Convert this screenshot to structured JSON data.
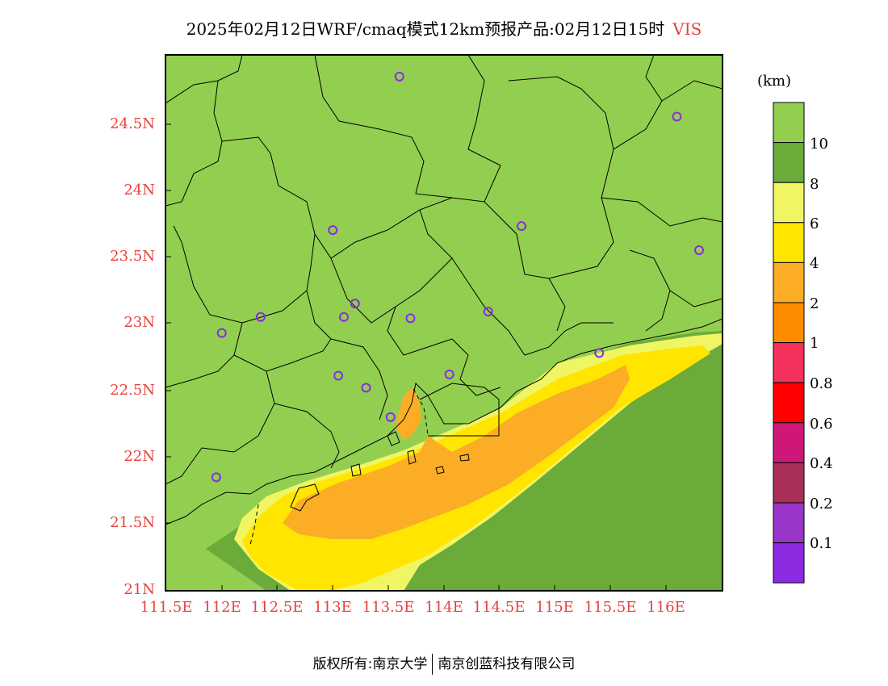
{
  "title": {
    "text": "2025年02月12日WRF/cmaq模式12km预报产品:02月12日15时",
    "variable": "VIS"
  },
  "y_axis_labels": [
    "24.5N",
    "24N",
    "23.5N",
    "23N",
    "22.5N",
    "22N",
    "21.5N",
    "21N"
  ],
  "x_axis_labels": [
    "111.5E",
    "112E",
    "112.5E",
    "113E",
    "113.5E",
    "114E",
    "114.5E",
    "115E",
    "115.5E",
    "116E"
  ],
  "colorbar": {
    "unit": "(km)",
    "labels": [
      "10",
      "8",
      "6",
      "4",
      "2",
      "1",
      "0.8",
      "0.6",
      "0.4",
      "0.2",
      "0.1"
    ],
    "colors": [
      "#92cf50",
      "#6aab3a",
      "#f0f564",
      "#ffe500",
      "#fbad26",
      "#ff8c00",
      "#f4315c",
      "#ff0000",
      "#cf1679",
      "#a82f57",
      "#9a35ca",
      "#8a2be2"
    ]
  },
  "stations": [
    {
      "lon": 113.6,
      "lat": 24.85
    },
    {
      "lon": 116.1,
      "lat": 24.55
    },
    {
      "lon": 113.0,
      "lat": 23.7
    },
    {
      "lon": 114.7,
      "lat": 23.73
    },
    {
      "lon": 116.3,
      "lat": 23.55
    },
    {
      "lon": 112.35,
      "lat": 23.05
    },
    {
      "lon": 112.0,
      "lat": 22.93
    },
    {
      "lon": 113.1,
      "lat": 23.05
    },
    {
      "lon": 113.2,
      "lat": 23.15
    },
    {
      "lon": 113.7,
      "lat": 23.04
    },
    {
      "lon": 114.4,
      "lat": 23.09
    },
    {
      "lon": 115.4,
      "lat": 22.78
    },
    {
      "lon": 113.05,
      "lat": 22.61
    },
    {
      "lon": 113.3,
      "lat": 22.52
    },
    {
      "lon": 114.05,
      "lat": 22.62
    },
    {
      "lon": 113.52,
      "lat": 22.3
    },
    {
      "lon": 111.95,
      "lat": 21.85
    }
  ],
  "footer": {
    "left": "版权所有:南京大学",
    "right": "南京创蓝科技有限公司"
  }
}
